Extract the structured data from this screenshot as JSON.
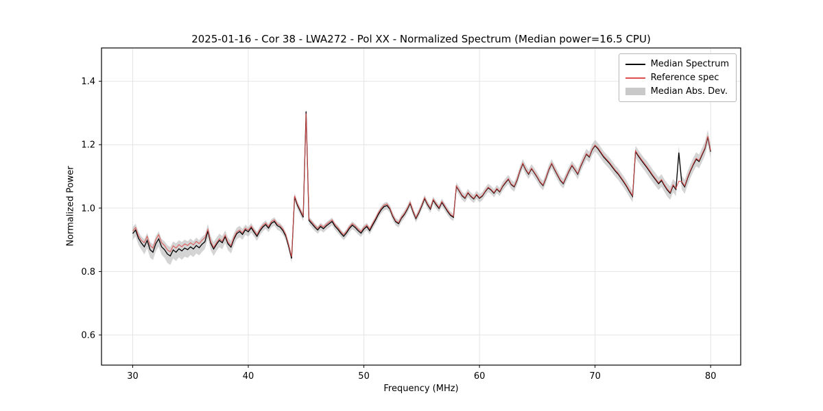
{
  "title": "2025-01-16 - Cor 38 - LWA272 - Pol XX - Normalized Spectrum (Median power=16.5 CPU)",
  "axes": {
    "xlabel": "Frequency (MHz)",
    "ylabel": "Normalized Power",
    "xlim": [
      27.3,
      82.6
    ],
    "ylim": [
      0.505,
      1.505
    ],
    "xticks": [
      30,
      40,
      50,
      60,
      70,
      80
    ],
    "yticks": [
      0.6,
      0.8,
      1.0,
      1.2,
      1.4
    ],
    "grid": true
  },
  "legend": {
    "position": "upper right",
    "entries": [
      {
        "label": "Median Spectrum",
        "type": "line",
        "color": "#000000"
      },
      {
        "label": "Reference spec",
        "type": "line",
        "color": "#dd4f4f"
      },
      {
        "label": "Median Abs. Dev.",
        "type": "patch",
        "color": "#c9c9c9"
      }
    ]
  },
  "chart_data": {
    "type": "line",
    "title": "2025-01-16 - Cor 38 - LWA272 - Pol XX - Normalized Spectrum (Median power=16.5 CPU)",
    "xlabel": "Frequency (MHz)",
    "ylabel": "Normalized Power",
    "xlim": [
      27.3,
      82.6
    ],
    "ylim": [
      0.505,
      1.505
    ],
    "grid": true,
    "legend_position": "upper right",
    "x_start": 30.0,
    "x_step": 0.25,
    "x_end": 80.0,
    "series": [
      {
        "name": "Median Spectrum",
        "color": "#000000",
        "values": [
          0.92,
          0.931,
          0.905,
          0.89,
          0.878,
          0.898,
          0.869,
          0.861,
          0.888,
          0.903,
          0.878,
          0.869,
          0.855,
          0.849,
          0.868,
          0.861,
          0.872,
          0.865,
          0.874,
          0.869,
          0.878,
          0.871,
          0.882,
          0.875,
          0.886,
          0.894,
          0.928,
          0.889,
          0.871,
          0.886,
          0.898,
          0.891,
          0.91,
          0.887,
          0.877,
          0.902,
          0.92,
          0.926,
          0.917,
          0.932,
          0.925,
          0.938,
          0.924,
          0.911,
          0.928,
          0.94,
          0.948,
          0.937,
          0.952,
          0.958,
          0.945,
          0.94,
          0.929,
          0.911,
          0.879,
          0.841,
          1.035,
          1.009,
          0.99,
          0.971,
          1.305,
          0.961,
          0.951,
          0.94,
          0.931,
          0.942,
          0.935,
          0.944,
          0.951,
          0.958,
          0.943,
          0.933,
          0.921,
          0.911,
          0.922,
          0.936,
          0.946,
          0.939,
          0.929,
          0.921,
          0.934,
          0.942,
          0.929,
          0.946,
          0.962,
          0.98,
          0.995,
          1.005,
          1.008,
          0.997,
          0.974,
          0.957,
          0.951,
          0.968,
          0.98,
          0.996,
          1.015,
          0.989,
          0.967,
          0.985,
          1.006,
          1.03,
          1.011,
          0.997,
          1.025,
          1.011,
          0.999,
          1.018,
          1.004,
          0.989,
          0.977,
          0.971,
          1.068,
          1.054,
          1.039,
          1.031,
          1.048,
          1.037,
          1.029,
          1.042,
          1.031,
          1.038,
          1.052,
          1.064,
          1.057,
          1.047,
          1.06,
          1.051,
          1.068,
          1.08,
          1.091,
          1.074,
          1.067,
          1.088,
          1.117,
          1.14,
          1.121,
          1.107,
          1.124,
          1.111,
          1.097,
          1.081,
          1.071,
          1.094,
          1.121,
          1.14,
          1.121,
          1.104,
          1.087,
          1.077,
          1.097,
          1.117,
          1.134,
          1.121,
          1.107,
          1.131,
          1.151,
          1.17,
          1.161,
          1.184,
          1.197,
          1.187,
          1.174,
          1.161,
          1.151,
          1.141,
          1.129,
          1.117,
          1.107,
          1.094,
          1.081,
          1.067,
          1.051,
          1.037,
          1.178,
          1.164,
          1.151,
          1.139,
          1.127,
          1.114,
          1.101,
          1.089,
          1.077,
          1.087,
          1.071,
          1.057,
          1.047,
          1.071,
          1.059,
          1.175,
          1.081,
          1.067,
          1.094,
          1.117,
          1.137,
          1.154,
          1.147,
          1.167,
          1.187,
          1.224,
          1.178
        ]
      },
      {
        "name": "Reference spec",
        "color": "#dd4f4f",
        "values": [
          0.928,
          0.939,
          0.913,
          0.898,
          0.891,
          0.911,
          0.882,
          0.874,
          0.901,
          0.916,
          0.891,
          0.882,
          0.868,
          0.862,
          0.881,
          0.874,
          0.885,
          0.878,
          0.887,
          0.882,
          0.891,
          0.884,
          0.895,
          0.888,
          0.899,
          0.907,
          0.933,
          0.894,
          0.876,
          0.891,
          0.903,
          0.896,
          0.915,
          0.892,
          0.882,
          0.907,
          0.925,
          0.931,
          0.922,
          0.937,
          0.93,
          0.943,
          0.929,
          0.916,
          0.933,
          0.945,
          0.953,
          0.942,
          0.957,
          0.963,
          0.95,
          0.945,
          0.934,
          0.916,
          0.884,
          0.846,
          1.039,
          1.013,
          0.994,
          0.975,
          1.298,
          0.966,
          0.956,
          0.945,
          0.936,
          0.947,
          0.94,
          0.949,
          0.956,
          0.963,
          0.948,
          0.938,
          0.926,
          0.916,
          0.927,
          0.941,
          0.951,
          0.944,
          0.934,
          0.926,
          0.939,
          0.947,
          0.934,
          0.951,
          0.967,
          0.985,
          1.0,
          1.01,
          1.013,
          1.0,
          0.977,
          0.96,
          0.954,
          0.971,
          0.983,
          0.999,
          1.018,
          0.992,
          0.97,
          0.988,
          1.009,
          1.033,
          1.014,
          1.0,
          1.028,
          1.014,
          1.002,
          1.021,
          1.007,
          0.992,
          0.98,
          0.974,
          1.07,
          1.056,
          1.041,
          1.033,
          1.05,
          1.039,
          1.031,
          1.044,
          1.033,
          1.04,
          1.054,
          1.066,
          1.059,
          1.049,
          1.062,
          1.053,
          1.07,
          1.082,
          1.093,
          1.076,
          1.069,
          1.09,
          1.119,
          1.142,
          1.123,
          1.109,
          1.126,
          1.113,
          1.099,
          1.083,
          1.073,
          1.096,
          1.123,
          1.142,
          1.123,
          1.106,
          1.089,
          1.079,
          1.099,
          1.119,
          1.136,
          1.123,
          1.109,
          1.133,
          1.153,
          1.172,
          1.163,
          1.186,
          1.199,
          1.19,
          1.177,
          1.164,
          1.154,
          1.144,
          1.132,
          1.12,
          1.11,
          1.097,
          1.084,
          1.07,
          1.054,
          1.04,
          1.181,
          1.167,
          1.154,
          1.142,
          1.13,
          1.117,
          1.104,
          1.092,
          1.08,
          1.09,
          1.074,
          1.06,
          1.05,
          1.074,
          1.062,
          1.085,
          1.084,
          1.07,
          1.097,
          1.12,
          1.14,
          1.157,
          1.15,
          1.17,
          1.19,
          1.227,
          1.181
        ]
      },
      {
        "name": "Median Abs. Dev. (half-width of band around Median Spectrum)",
        "color": "#aaaaaa",
        "values": [
          0.02,
          0.02,
          0.021,
          0.021,
          0.024,
          0.024,
          0.025,
          0.025,
          0.024,
          0.024,
          0.025,
          0.026,
          0.028,
          0.028,
          0.027,
          0.028,
          0.027,
          0.028,
          0.027,
          0.026,
          0.026,
          0.025,
          0.025,
          0.024,
          0.024,
          0.023,
          0.022,
          0.022,
          0.022,
          0.021,
          0.021,
          0.021,
          0.02,
          0.02,
          0.02,
          0.019,
          0.018,
          0.018,
          0.017,
          0.016,
          0.015,
          0.015,
          0.014,
          0.014,
          0.014,
          0.014,
          0.013,
          0.013,
          0.013,
          0.013,
          0.013,
          0.013,
          0.013,
          0.013,
          0.014,
          0.014,
          0.013,
          0.012,
          0.012,
          0.012,
          0.012,
          0.012,
          0.012,
          0.012,
          0.012,
          0.012,
          0.012,
          0.012,
          0.012,
          0.012,
          0.012,
          0.012,
          0.012,
          0.012,
          0.012,
          0.012,
          0.012,
          0.012,
          0.012,
          0.012,
          0.012,
          0.012,
          0.012,
          0.012,
          0.012,
          0.012,
          0.012,
          0.012,
          0.012,
          0.012,
          0.012,
          0.012,
          0.012,
          0.012,
          0.012,
          0.012,
          0.012,
          0.012,
          0.012,
          0.012,
          0.012,
          0.012,
          0.012,
          0.012,
          0.012,
          0.012,
          0.012,
          0.012,
          0.012,
          0.012,
          0.012,
          0.012,
          0.013,
          0.013,
          0.013,
          0.013,
          0.013,
          0.013,
          0.013,
          0.013,
          0.013,
          0.013,
          0.013,
          0.013,
          0.013,
          0.013,
          0.013,
          0.013,
          0.014,
          0.014,
          0.014,
          0.015,
          0.015,
          0.015,
          0.015,
          0.015,
          0.015,
          0.015,
          0.015,
          0.015,
          0.015,
          0.015,
          0.015,
          0.015,
          0.015,
          0.015,
          0.015,
          0.015,
          0.015,
          0.015,
          0.015,
          0.015,
          0.015,
          0.015,
          0.016,
          0.016,
          0.017,
          0.017,
          0.017,
          0.018,
          0.018,
          0.018,
          0.018,
          0.018,
          0.018,
          0.018,
          0.018,
          0.018,
          0.018,
          0.018,
          0.018,
          0.018,
          0.018,
          0.018,
          0.019,
          0.019,
          0.019,
          0.019,
          0.02,
          0.02,
          0.02,
          0.02,
          0.02,
          0.02,
          0.02,
          0.021,
          0.021,
          0.021,
          0.021,
          0.021,
          0.022,
          0.022,
          0.022,
          0.022,
          0.022,
          0.022,
          0.022,
          0.022,
          0.022,
          0.022,
          0.022
        ]
      }
    ]
  }
}
